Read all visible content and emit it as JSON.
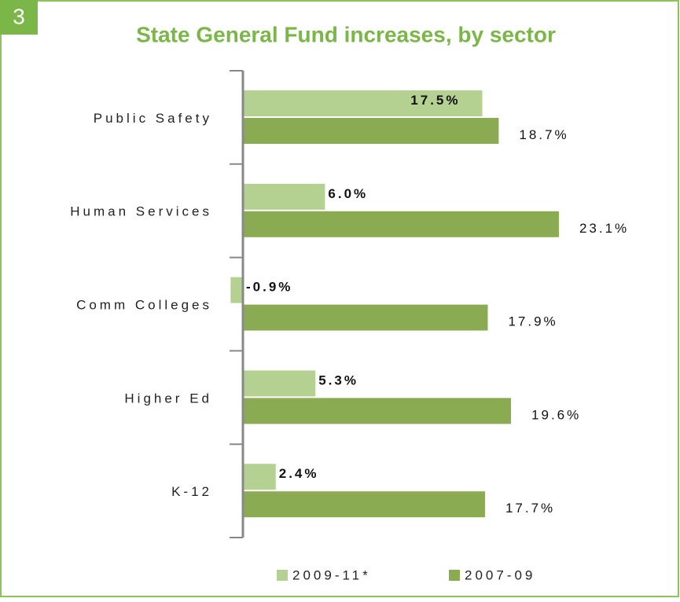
{
  "chart_data": {
    "type": "barh",
    "figure_number": "3",
    "title": "State General Fund increases, by sector",
    "categories": [
      "Public Safety",
      "Human Services",
      "Comm Colleges",
      "Higher Ed",
      "K-12"
    ],
    "series": [
      {
        "name": "2009-11*",
        "color": "#b5d192",
        "values": [
          17.5,
          6.0,
          -0.9,
          5.3,
          2.4
        ],
        "value_labels": [
          "17.5%",
          "6.0%",
          "-0.9%",
          "5.3%",
          "2.4%"
        ]
      },
      {
        "name": "2007-09",
        "color": "#8aab52",
        "values": [
          18.7,
          23.1,
          17.9,
          19.6,
          17.7
        ],
        "value_labels": [
          "18.7%",
          "23.1%",
          "17.9%",
          "19.6%",
          "17.7%"
        ]
      }
    ],
    "xlim": [
      -1,
      24
    ],
    "legend": "bottom"
  }
}
